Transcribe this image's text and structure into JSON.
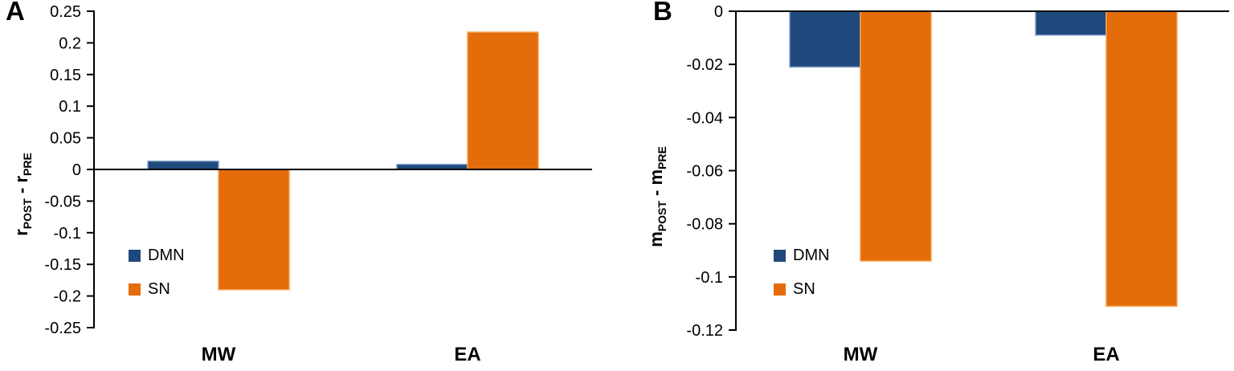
{
  "figure": {
    "background": "#FFFFFF",
    "text_color": "#000000",
    "axis_color": "#000000"
  },
  "chart_data": [
    {
      "type": "bar",
      "panel": "A",
      "categories": [
        "MW",
        "EA"
      ],
      "series": [
        {
          "name": "DMN",
          "color": "#1F497D",
          "border": "#7E9DC8",
          "values": [
            0.013,
            0.008
          ]
        },
        {
          "name": "SN",
          "color": "#E46C0A",
          "border": "#F5A452",
          "values": [
            -0.19,
            0.217
          ]
        }
      ],
      "ylabel_parts": {
        "base1": "r",
        "sub1": "POST",
        "dash": " - ",
        "base2": "r",
        "sub2": "PRE"
      },
      "ylim": [
        -0.25,
        0.25
      ],
      "yticks": [
        0.25,
        0.2,
        0.15,
        0.1,
        0.05,
        0,
        -0.05,
        -0.1,
        -0.15,
        -0.2,
        -0.25
      ],
      "ytick_labels": [
        "0.25",
        "0.2",
        "0.15",
        "0.1",
        "0.05",
        "0",
        "-0.05",
        "-0.1",
        "-0.15",
        "-0.2",
        "-0.25"
      ],
      "legend": {
        "position": "inside-lower-left",
        "items": [
          "DMN",
          "SN"
        ]
      },
      "grid": false
    },
    {
      "type": "bar",
      "panel": "B",
      "categories": [
        "MW",
        "EA"
      ],
      "series": [
        {
          "name": "DMN",
          "color": "#1F497D",
          "border": "#7E9DC8",
          "values": [
            -0.021,
            -0.009
          ]
        },
        {
          "name": "SN",
          "color": "#E46C0A",
          "border": "#F5A452",
          "values": [
            -0.094,
            -0.111
          ]
        }
      ],
      "ylabel_parts": {
        "base1": "m",
        "sub1": "POST",
        "dash": " - ",
        "base2": "m",
        "sub2": "PRE"
      },
      "ylim": [
        -0.12,
        0
      ],
      "yticks": [
        0,
        -0.02,
        -0.04,
        -0.06,
        -0.08,
        -0.1,
        -0.12
      ],
      "ytick_labels": [
        "0",
        "-0.02",
        "-0.04",
        "-0.06",
        "-0.08",
        "-0.1",
        "-0.12"
      ],
      "legend": {
        "position": "inside-lower-left",
        "items": [
          "DMN",
          "SN"
        ]
      },
      "grid": false
    }
  ]
}
